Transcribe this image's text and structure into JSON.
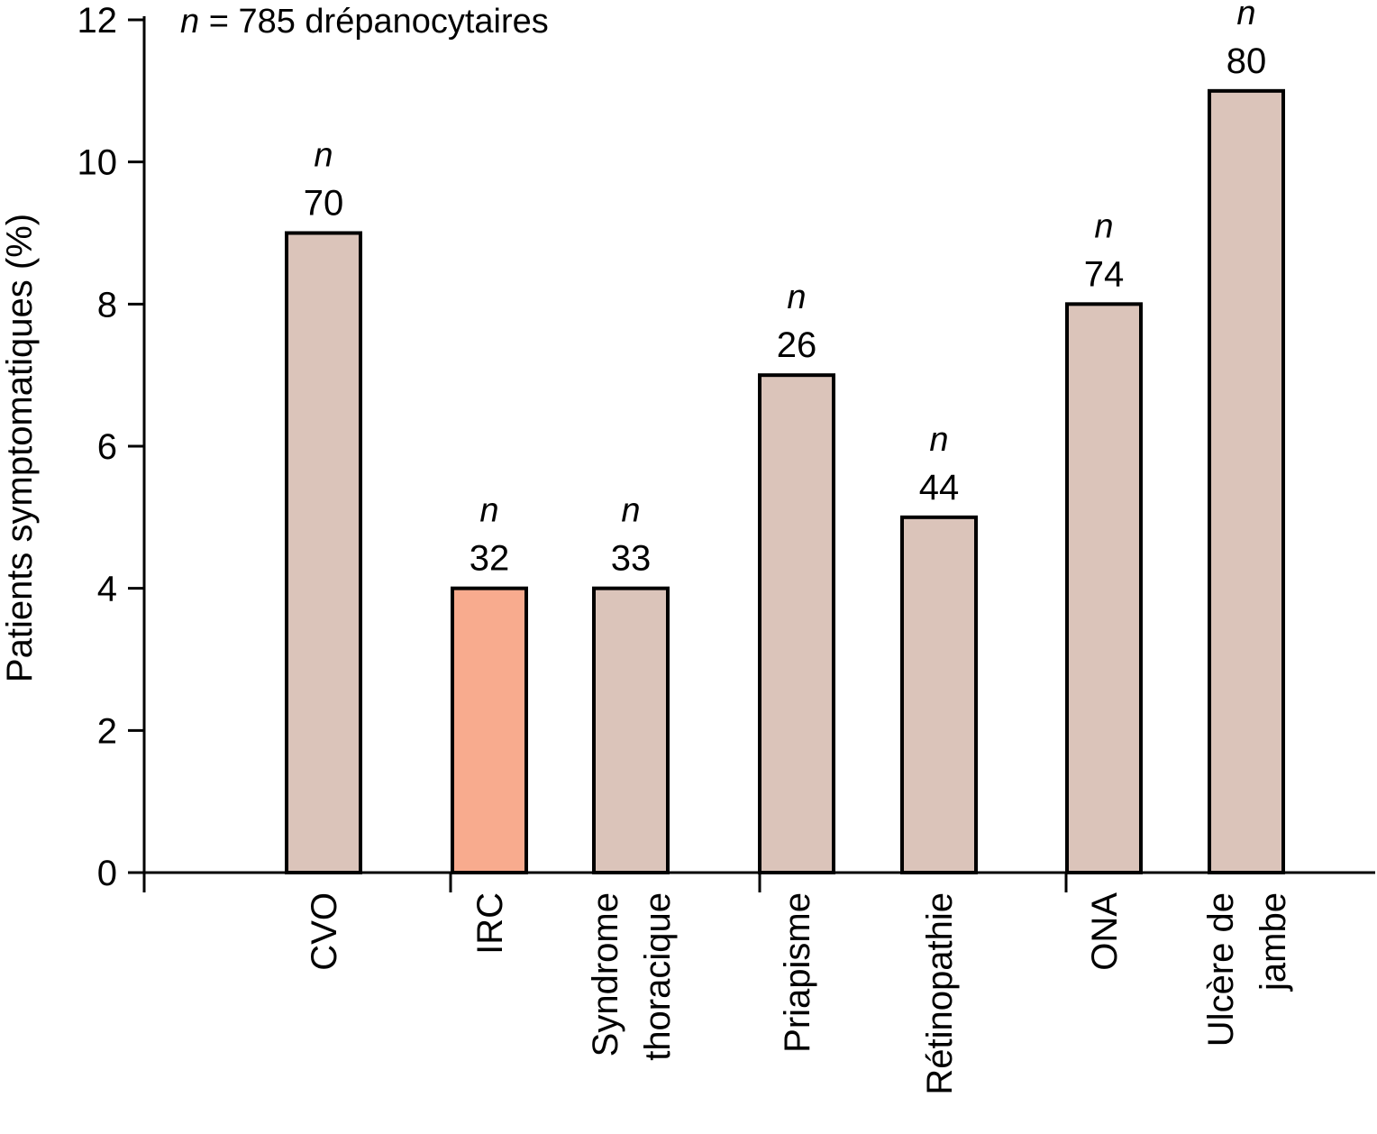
{
  "chart_data": {
    "type": "bar",
    "title": "",
    "annotation": {
      "italic": "n",
      "text": " = 785 drépanocytaires"
    },
    "xlabel": "",
    "ylabel": "Patients symptomatiques (%)",
    "ylim": [
      0,
      12
    ],
    "yticks": [
      0,
      2,
      4,
      6,
      8,
      10,
      12
    ],
    "grid": false,
    "categories": [
      {
        "lines": [
          "CVO"
        ]
      },
      {
        "lines": [
          "IRC"
        ]
      },
      {
        "lines": [
          "Syndrome",
          "thoracique"
        ]
      },
      {
        "lines": [
          "Priapisme"
        ]
      },
      {
        "lines": [
          "Rétinopathie"
        ]
      },
      {
        "lines": [
          "ONA"
        ]
      },
      {
        "lines": [
          "Ulcère de",
          "jambe"
        ]
      }
    ],
    "values": [
      9,
      4,
      4,
      7,
      5,
      8,
      11
    ],
    "n_prefix": "n",
    "n_values": [
      "70",
      "32",
      "33",
      "26",
      "44",
      "74",
      "80"
    ],
    "colors": [
      "#dbc4ba",
      "#f8ab8e",
      "#dbc4ba",
      "#dbc4ba",
      "#dbc4ba",
      "#dbc4ba",
      "#dbc4ba"
    ],
    "bar_stroke": "#000000"
  }
}
